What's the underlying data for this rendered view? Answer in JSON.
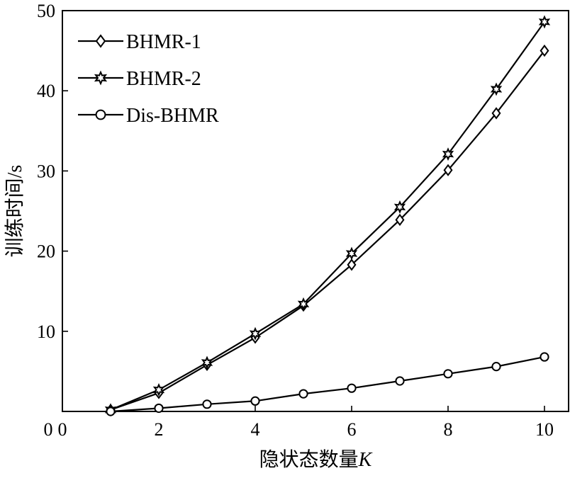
{
  "chart_data": {
    "type": "line",
    "xlabel": "隐状态数量",
    "xlabel_var": "K",
    "ylabel": "训练时间/s",
    "xlim": [
      0,
      10.5
    ],
    "ylim": [
      0,
      50
    ],
    "xticks": [
      0,
      2,
      4,
      6,
      8,
      10
    ],
    "yticks": [
      10,
      20,
      30,
      40,
      50
    ],
    "legend_position": "top-left",
    "grid": false,
    "x": [
      1,
      2,
      3,
      4,
      5,
      6,
      7,
      8,
      9,
      10
    ],
    "series": [
      {
        "name": "BHMR-1",
        "marker": "diamond",
        "values": [
          0.2,
          2.3,
          5.8,
          9.2,
          13.2,
          18.3,
          23.9,
          30.1,
          37.2,
          45.0
        ]
      },
      {
        "name": "BHMR-2",
        "marker": "star",
        "values": [
          0.2,
          2.7,
          6.1,
          9.7,
          13.4,
          19.7,
          25.5,
          32.1,
          40.2,
          48.6
        ]
      },
      {
        "name": "Dis-BHMR",
        "marker": "circle",
        "values": [
          0.0,
          0.4,
          0.9,
          1.3,
          2.2,
          2.9,
          3.8,
          4.7,
          5.6,
          6.8
        ]
      }
    ]
  }
}
